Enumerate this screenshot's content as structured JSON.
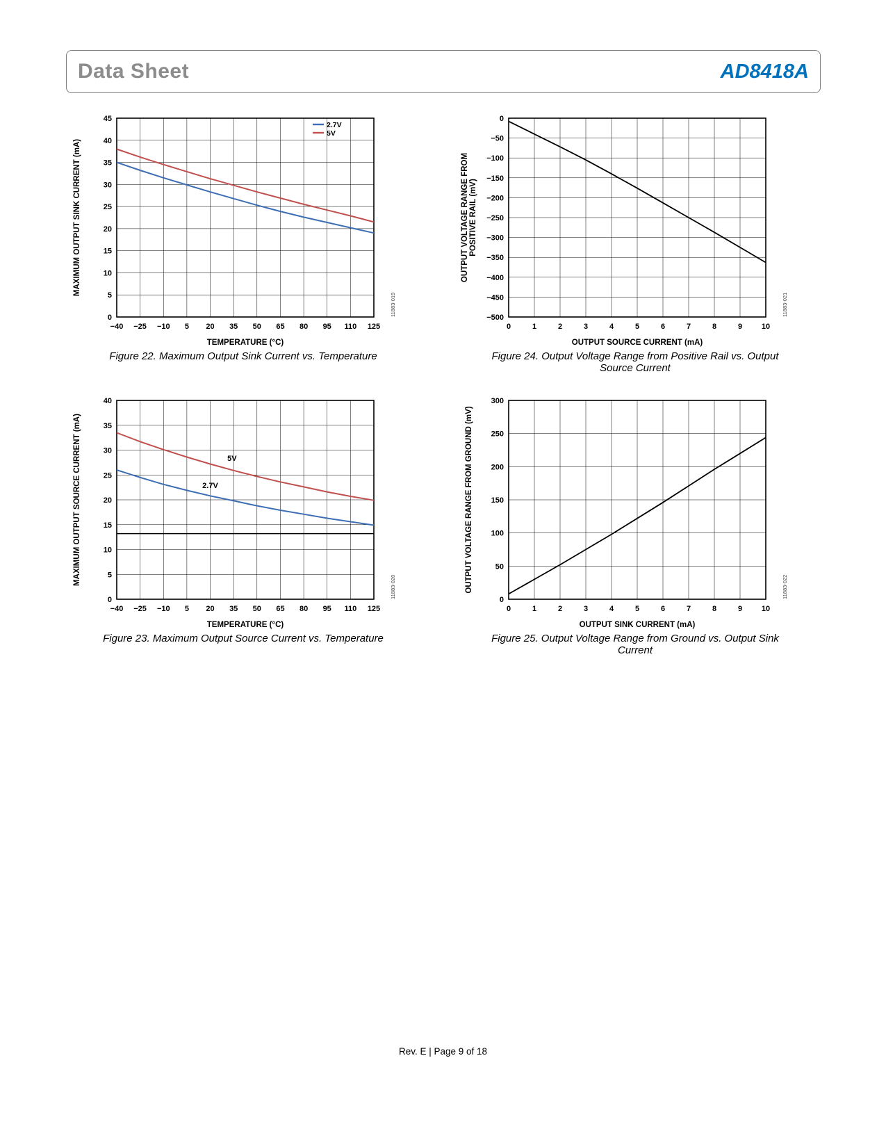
{
  "header": {
    "doc_type": "Data Sheet",
    "part_number": "AD8418A"
  },
  "footer": {
    "text": "Rev. E | Page 9 of 18"
  },
  "colors": {
    "accent_blue": "#0072bc",
    "series_blue": "#3d6eb4",
    "series_red": "#c0504d",
    "series_black": "#000000"
  },
  "chart_data": [
    {
      "type": "line",
      "figure": "Figure 22",
      "caption": "Figure 22. Maximum Output Sink Current vs. Temperature",
      "code": "11883-019",
      "xlabel": "TEMPERATURE (°C)",
      "ylabel": "MAXIMUM OUTPUT SINK CURRENT (mA)",
      "xlim": [
        -40,
        125
      ],
      "ylim": [
        0,
        45
      ],
      "xticks": [
        -40,
        -25,
        -10,
        5,
        20,
        35,
        50,
        65,
        80,
        95,
        110,
        125
      ],
      "yticks": [
        0,
        5,
        10,
        15,
        20,
        25,
        30,
        35,
        40,
        45
      ],
      "grid": true,
      "legend_position": "top-right",
      "legend": [
        {
          "label": "2.7V",
          "color": "#3d6eb4"
        },
        {
          "label": "5V",
          "color": "#c0504d"
        }
      ],
      "series": [
        {
          "name": "2.7V",
          "color": "#3d6eb4",
          "width": 2,
          "x": [
            -40,
            -25,
            -10,
            5,
            20,
            35,
            50,
            65,
            80,
            95,
            110,
            125
          ],
          "y": [
            35.0,
            33.2,
            31.5,
            29.9,
            28.3,
            26.8,
            25.3,
            23.9,
            22.6,
            21.4,
            20.2,
            19.0
          ]
        },
        {
          "name": "5V",
          "color": "#c0504d",
          "width": 2,
          "x": [
            -40,
            -25,
            -10,
            5,
            20,
            35,
            50,
            65,
            80,
            95,
            110,
            125
          ],
          "y": [
            38.0,
            36.2,
            34.5,
            32.9,
            31.3,
            29.8,
            28.3,
            26.9,
            25.5,
            24.2,
            22.9,
            21.5
          ]
        }
      ]
    },
    {
      "type": "line",
      "figure": "Figure 24",
      "caption": "Figure 24. Output Voltage Range from Positive Rail vs. Output Source Current",
      "code": "11883-021",
      "xlabel": "OUTPUT SOURCE CURRENT (mA)",
      "ylabel": "OUTPUT VOLTAGE RANGE FROM\nPOSITIVE RAIL (mV)",
      "xlim": [
        0,
        10
      ],
      "ylim": [
        -500,
        0
      ],
      "xticks": [
        0,
        1,
        2,
        3,
        4,
        5,
        6,
        7,
        8,
        9,
        10
      ],
      "yticks": [
        0,
        -50,
        -100,
        -150,
        -200,
        -250,
        -300,
        -350,
        -400,
        -450,
        -500
      ],
      "grid": true,
      "series": [
        {
          "name": "output-voltage-range",
          "color": "#000000",
          "width": 1.8,
          "x": [
            0,
            1,
            2,
            3,
            4,
            5,
            6,
            7,
            8,
            9,
            10
          ],
          "y": [
            -8,
            -40,
            -72,
            -105,
            -140,
            -176,
            -213,
            -250,
            -287,
            -325,
            -363
          ]
        }
      ]
    },
    {
      "type": "line",
      "figure": "Figure 23",
      "caption": "Figure 23. Maximum Output Source Current vs. Temperature",
      "code": "11883-020",
      "xlabel": "TEMPERATURE (°C)",
      "ylabel": "MAXIMUM OUTPUT SOURCE CURRENT (mA)",
      "xlim": [
        -40,
        125
      ],
      "ylim": [
        0,
        40
      ],
      "xticks": [
        -40,
        -25,
        -10,
        5,
        20,
        35,
        50,
        65,
        80,
        95,
        110,
        125
      ],
      "yticks": [
        0,
        5,
        10,
        15,
        20,
        25,
        30,
        35,
        40
      ],
      "grid": true,
      "labels": [
        {
          "text": "5V",
          "x": 34,
          "y": 27.8
        },
        {
          "text": "2.7V",
          "x": 20,
          "y": 22.4
        }
      ],
      "series": [
        {
          "name": "5V",
          "color": "#c0504d",
          "width": 2,
          "x": [
            -40,
            -25,
            -10,
            5,
            20,
            35,
            50,
            65,
            80,
            95,
            110,
            125
          ],
          "y": [
            33.5,
            31.7,
            30.1,
            28.6,
            27.2,
            25.9,
            24.7,
            23.6,
            22.6,
            21.6,
            20.7,
            19.9
          ]
        },
        {
          "name": "2.7V",
          "color": "#3d6eb4",
          "width": 2,
          "x": [
            -40,
            -25,
            -10,
            5,
            20,
            35,
            50,
            65,
            80,
            95,
            110,
            125
          ],
          "y": [
            26.0,
            24.5,
            23.1,
            21.9,
            20.8,
            19.8,
            18.8,
            17.9,
            17.1,
            16.3,
            15.6,
            14.9
          ]
        },
        {
          "name": "limit-line",
          "color": "#000000",
          "width": 1.5,
          "x": [
            -40,
            125
          ],
          "y": [
            13.2,
            13.2
          ]
        }
      ]
    },
    {
      "type": "line",
      "figure": "Figure 25",
      "caption": "Figure 25. Output Voltage Range from Ground vs. Output Sink Current",
      "code": "11883-022",
      "xlabel": "OUTPUT SINK CURRENT (mA)",
      "ylabel": "OUTPUT VOLTAGE RANGE FROM GROUND (mV)",
      "xlim": [
        0,
        10
      ],
      "ylim": [
        0,
        300
      ],
      "xticks": [
        0,
        1,
        2,
        3,
        4,
        5,
        6,
        7,
        8,
        9,
        10
      ],
      "yticks": [
        0,
        50,
        100,
        150,
        200,
        250,
        300
      ],
      "grid": true,
      "series": [
        {
          "name": "output-voltage-range",
          "color": "#000000",
          "width": 1.8,
          "x": [
            0,
            1,
            2,
            3,
            4,
            5,
            6,
            7,
            8,
            9,
            10
          ],
          "y": [
            8,
            30,
            52,
            75,
            98,
            122,
            146,
            171,
            196,
            220,
            244
          ]
        }
      ]
    }
  ]
}
